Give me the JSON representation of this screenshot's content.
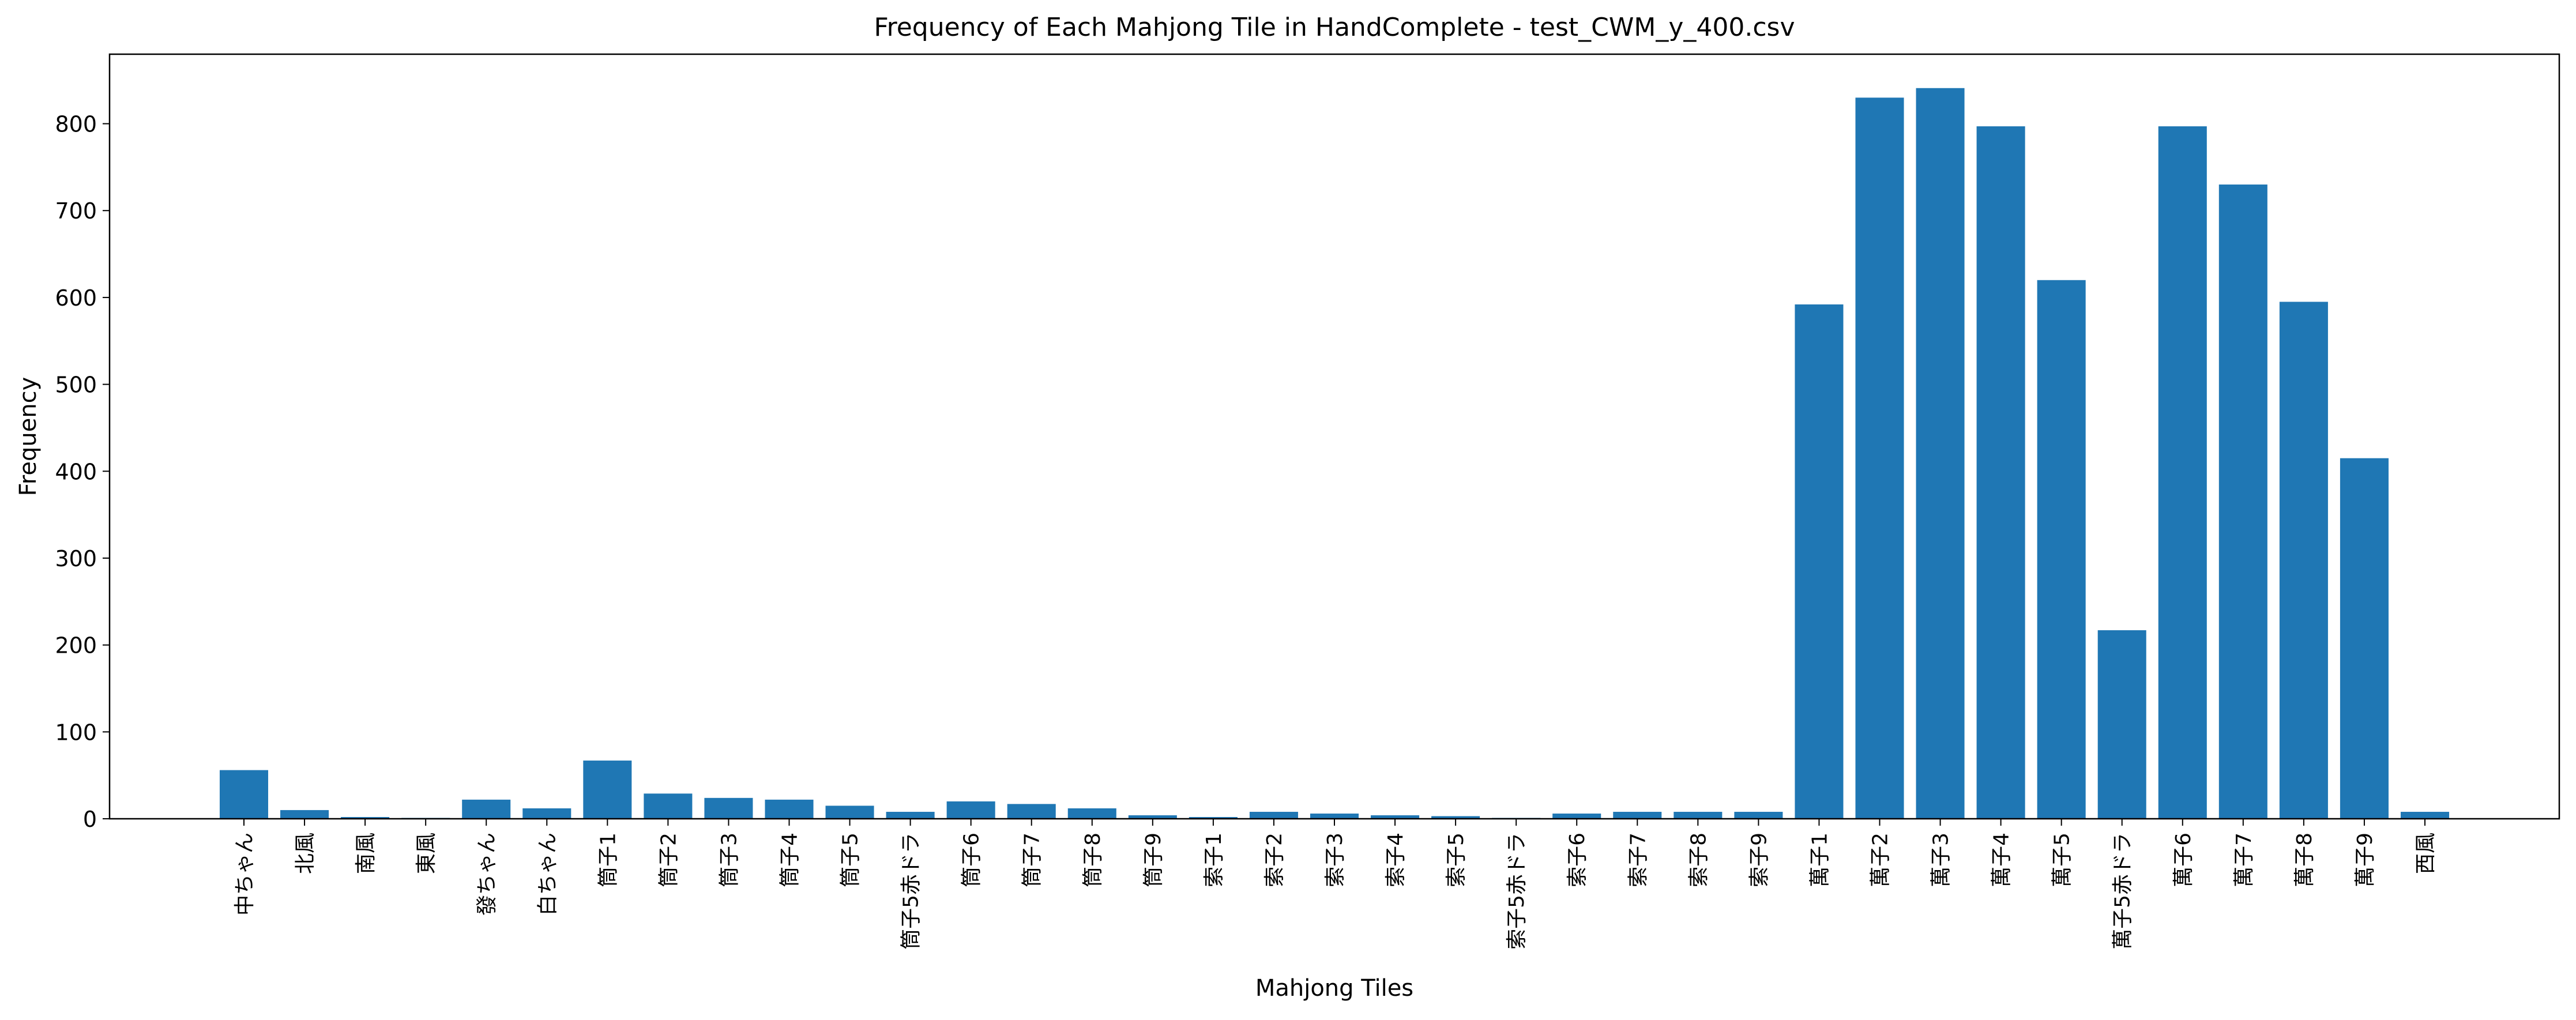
{
  "chart_data": {
    "type": "bar",
    "title": "Frequency of Each Mahjong Tile in HandComplete - test_CWM_y_400.csv",
    "xlabel": "Mahjong Tiles",
    "ylabel": "Frequency",
    "ylim": [
      0,
      880
    ],
    "yticks": [
      0,
      100,
      200,
      300,
      400,
      500,
      600,
      700,
      800
    ],
    "grid": false,
    "bar_color": "#1f77b4",
    "categories": [
      "中ちゃん",
      "北風",
      "南風",
      "東風",
      "發ちゃん",
      "白ちゃん",
      "筒子1",
      "筒子2",
      "筒子3",
      "筒子4",
      "筒子5",
      "筒子5赤ドラ",
      "筒子6",
      "筒子7",
      "筒子8",
      "筒子9",
      "索子1",
      "索子2",
      "索子3",
      "索子4",
      "索子5",
      "索子5赤ドラ",
      "索子6",
      "索子7",
      "索子8",
      "索子9",
      "萬子1",
      "萬子2",
      "萬子3",
      "萬子4",
      "萬子5",
      "萬子5赤ドラ",
      "萬子6",
      "萬子7",
      "萬子8",
      "萬子9",
      "西風"
    ],
    "values": [
      56,
      10,
      2,
      1,
      22,
      12,
      67,
      29,
      24,
      22,
      15,
      8,
      20,
      17,
      12,
      4,
      2,
      8,
      6,
      4,
      3,
      1,
      6,
      8,
      8,
      8,
      592,
      830,
      841,
      797,
      620,
      217,
      797,
      730,
      595,
      415,
      8
    ]
  }
}
